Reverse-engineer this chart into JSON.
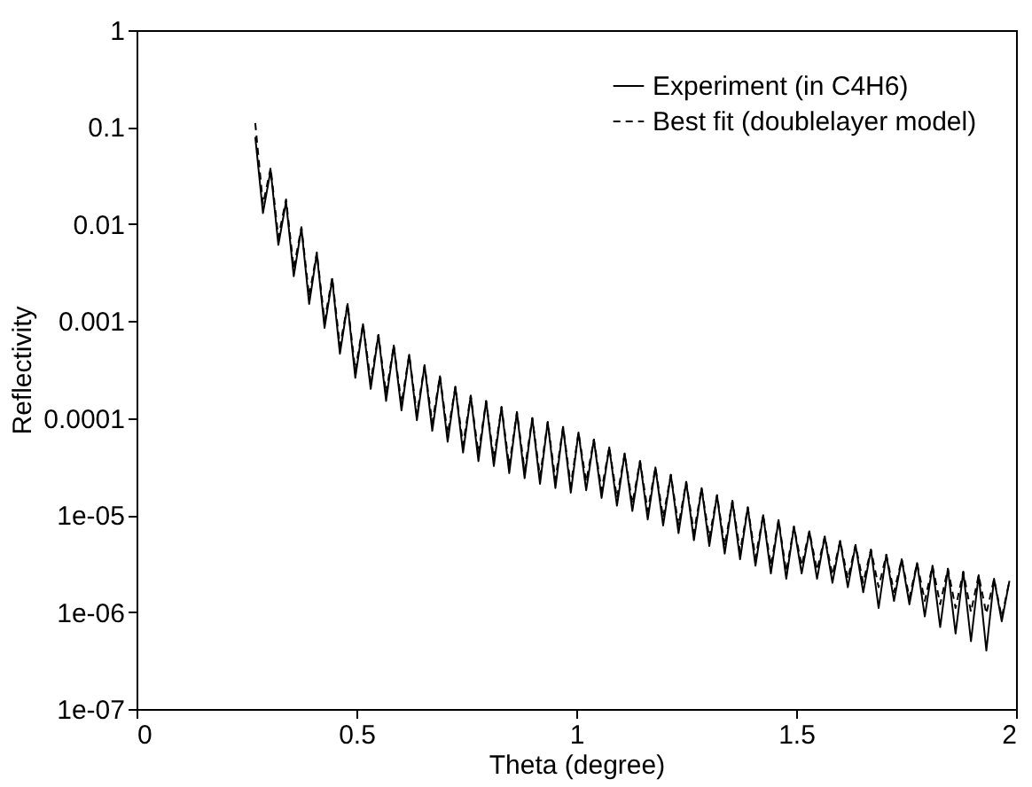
{
  "chart_data": {
    "type": "line",
    "xlabel": "Theta (degree)",
    "ylabel": "Reflectivity",
    "xlim": [
      0,
      2
    ],
    "xticks": [
      0,
      0.5,
      1,
      1.5,
      2
    ],
    "ylim": [
      1e-07,
      1
    ],
    "yticks": [
      {
        "value": 1e-07,
        "label": "1e-07"
      },
      {
        "value": 1e-06,
        "label": "1e-06"
      },
      {
        "value": 1e-05,
        "label": "1e-05"
      },
      0.0001,
      0.001,
      0.01,
      0.1,
      1
    ],
    "log": "y",
    "grid": false,
    "legend": "top right",
    "x": [
      0.27,
      0.2875,
      0.305,
      0.3225,
      0.34,
      0.3575,
      0.375,
      0.3925,
      0.41,
      0.4275,
      0.445,
      0.4625,
      0.48,
      0.4975,
      0.515,
      0.5325,
      0.55,
      0.5675,
      0.585,
      0.6025,
      0.62,
      0.6375,
      0.655,
      0.6725,
      0.69,
      0.7075,
      0.725,
      0.7425,
      0.76,
      0.7775,
      0.795,
      0.8125,
      0.83,
      0.8475,
      0.865,
      0.8825,
      0.9,
      0.9175,
      0.935,
      0.9525,
      0.97,
      0.9875,
      1.005,
      1.0225,
      1.04,
      1.0575,
      1.075,
      1.0925,
      1.11,
      1.1275,
      1.145,
      1.1625,
      1.18,
      1.1975,
      1.215,
      1.2325,
      1.25,
      1.2675,
      1.285,
      1.3025,
      1.32,
      1.3375,
      1.355,
      1.3725,
      1.39,
      1.4075,
      1.425,
      1.4425,
      1.46,
      1.4775,
      1.495,
      1.5125,
      1.53,
      1.5475,
      1.565,
      1.5825,
      1.6,
      1.6175,
      1.635,
      1.6525,
      1.67,
      1.6875,
      1.705,
      1.7225,
      1.74,
      1.7575,
      1.775,
      1.7925,
      1.81,
      1.8275,
      1.845,
      1.8625,
      1.88,
      1.8975,
      1.915,
      1.9325,
      1.95,
      1.9675,
      1.985
    ],
    "series": [
      {
        "name": "Experiment (in C4H6)",
        "color": "#000000",
        "line_style": "solid",
        "values": [
          0.079,
          0.013,
          0.036,
          0.0061,
          0.017,
          0.0029,
          0.0091,
          0.0015,
          0.005,
          0.00085,
          0.0027,
          0.00046,
          0.0015,
          0.00026,
          0.00093,
          0.0002,
          0.00072,
          0.00015,
          0.00056,
          0.00012,
          0.00045,
          9.5e-05,
          0.00035,
          7.4e-05,
          0.00027,
          5.7e-05,
          0.00021,
          4.4e-05,
          0.00017,
          3.6e-05,
          0.00015,
          3.2e-05,
          0.00013,
          2.7e-05,
          0.000115,
          2.4e-05,
          0.0001,
          2.1e-05,
          9.1e-05,
          1.9e-05,
          8.1e-05,
          1.7e-05,
          7.1e-05,
          1.8e-05,
          6e-05,
          1.5e-05,
          5e-05,
          1.25e-05,
          4.3e-05,
          1.1e-05,
          3.6e-05,
          9e-06,
          3.1e-05,
          7.8e-06,
          2.6e-05,
          6.5e-06,
          2.2e-05,
          5.5e-06,
          1.9e-05,
          4.8e-06,
          1.6e-05,
          4e-06,
          1.4e-05,
          3.5e-06,
          1.2e-05,
          3e-06,
          1e-05,
          2.5e-06,
          8.9e-06,
          2.2e-06,
          7.6e-06,
          2.5e-06,
          6.8e-06,
          2.2e-06,
          6e-06,
          2e-06,
          5.4e-06,
          1.8e-06,
          4.9e-06,
          1.6e-06,
          4.4e-06,
          1.1e-06,
          3.9e-06,
          1.3e-06,
          3.5e-06,
          1.2e-06,
          3.2e-06,
          9e-07,
          3e-06,
          7e-07,
          2.8e-06,
          6e-07,
          2.6e-06,
          5e-07,
          2.4e-06,
          4e-07,
          2.2e-06,
          8e-07,
          2.1e-06
        ]
      },
      {
        "name": "Best fit (doublelayer model)",
        "color": "#000000",
        "line_style": "dashed",
        "values": [
          0.11,
          0.016,
          0.038,
          0.0073,
          0.018,
          0.0035,
          0.0093,
          0.0018,
          0.0051,
          0.001,
          0.0028,
          0.00055,
          0.0015,
          0.00031,
          0.00093,
          0.00024,
          0.00072,
          0.00018,
          0.00056,
          0.00014,
          0.00045,
          0.00011,
          0.00035,
          8.9e-05,
          0.00027,
          6.8e-05,
          0.00021,
          5.3e-05,
          0.00017,
          4.3e-05,
          0.00015,
          3.8e-05,
          0.00013,
          3.2e-05,
          0.000115,
          2.9e-05,
          0.0001,
          2.5e-05,
          9.1e-05,
          2.3e-05,
          8.1e-05,
          2e-05,
          7.1e-05,
          2.2e-05,
          6e-05,
          1.8e-05,
          5e-05,
          1.5e-05,
          4.3e-05,
          1.3e-05,
          3.6e-05,
          1.1e-05,
          3.1e-05,
          9.4e-06,
          2.6e-05,
          7.8e-06,
          2.2e-05,
          6.6e-06,
          1.9e-05,
          5.8e-06,
          1.6e-05,
          4.8e-06,
          1.4e-05,
          4.2e-06,
          1.2e-05,
          3.6e-06,
          1e-05,
          3e-06,
          8.9e-06,
          2.6e-06,
          7.6e-06,
          3e-06,
          6.8e-06,
          2.7e-06,
          6e-06,
          2.4e-06,
          5.4e-06,
          2.2e-06,
          4.9e-06,
          2e-06,
          4.4e-06,
          1.8e-06,
          3.9e-06,
          1.6e-06,
          3.5e-06,
          1.4e-06,
          3.2e-06,
          1.3e-06,
          3e-06,
          1.2e-06,
          2.8e-06,
          1.1e-06,
          2.6e-06,
          1e-06,
          2.4e-06,
          9.6e-07,
          2.2e-06,
          8.8e-07,
          2.1e-06
        ]
      }
    ]
  }
}
